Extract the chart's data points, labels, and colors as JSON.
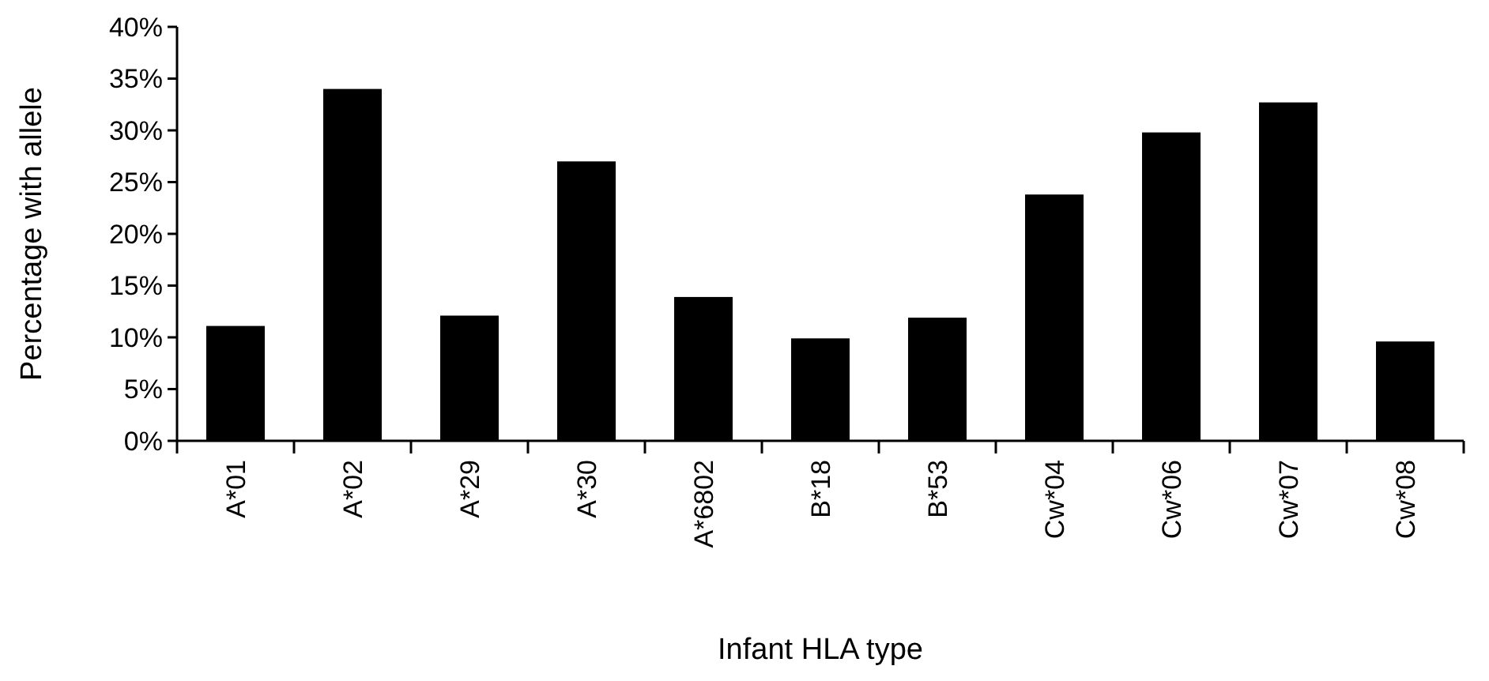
{
  "chart_data": {
    "type": "bar",
    "xlabel": "Infant HLA type",
    "ylabel": "Percentage with allele",
    "categories": [
      "A*01",
      "A*02",
      "A*29",
      "A*30",
      "A*6802",
      "B*18",
      "B*53",
      "Cw*04",
      "Cw*06",
      "Cw*07",
      "Cw*08"
    ],
    "values": [
      11.1,
      34.0,
      12.1,
      27.0,
      13.9,
      9.9,
      11.9,
      23.8,
      29.8,
      32.7,
      9.6
    ],
    "color": "#000000",
    "ylim": [
      0,
      40
    ],
    "yticks": [
      {
        "value": 0,
        "label": "0%"
      },
      {
        "value": 5,
        "label": "5%"
      },
      {
        "value": 10,
        "label": "10%"
      },
      {
        "value": 15,
        "label": "15%"
      },
      {
        "value": 20,
        "label": "20%"
      },
      {
        "value": 25,
        "label": "25%"
      },
      {
        "value": 30,
        "label": "30%"
      },
      {
        "value": 35,
        "label": "35%"
      },
      {
        "value": 40,
        "label": "40%"
      }
    ],
    "grid": false
  }
}
